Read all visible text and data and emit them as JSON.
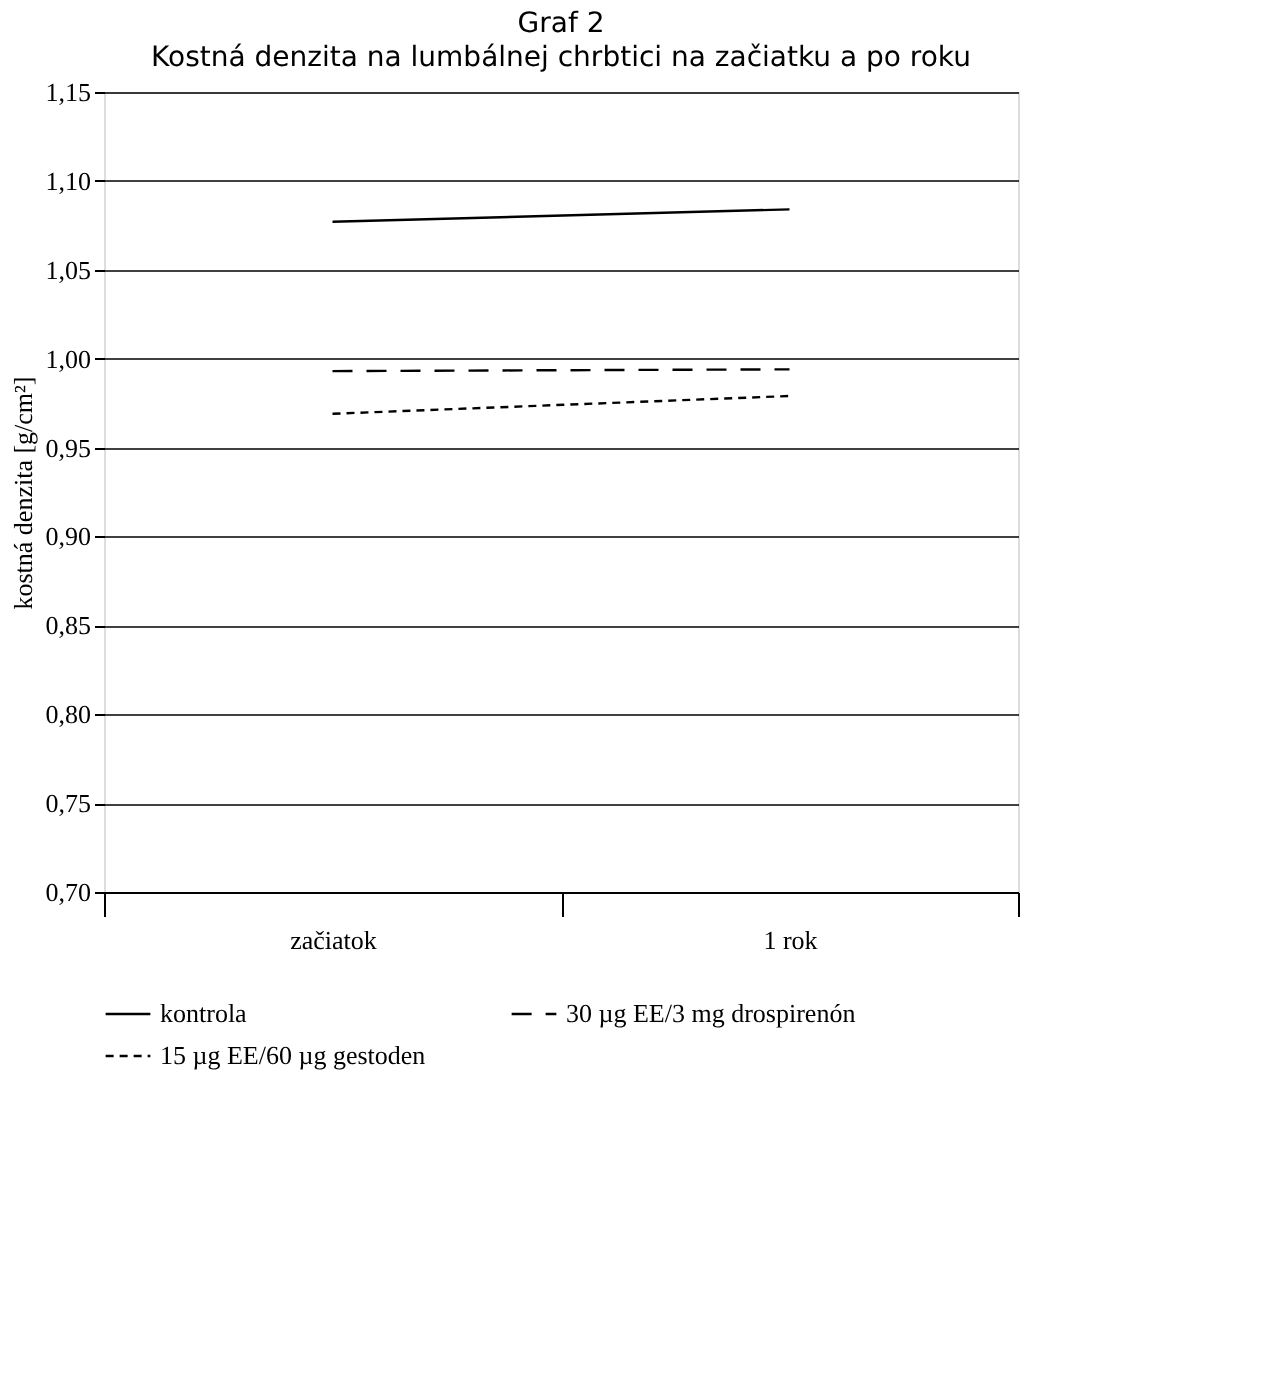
{
  "chart_data": {
    "type": "line",
    "title": "Graf 2",
    "subtitle": "Kostná denzita na lumbálnej chrbtici na začiatku a po roku",
    "ylabel": "kostná denzita [g/cm²]",
    "categories": [
      "začiatok",
      "1 rok"
    ],
    "series": [
      {
        "name": "kontrola",
        "color": "#000000",
        "line_style": "solid",
        "values": [
          1.077,
          1.084
        ]
      },
      {
        "name": "30 µg EE/3 mg drospirenón",
        "color": "#000000",
        "line_style": "dashed",
        "values": [
          0.993,
          0.994
        ]
      },
      {
        "name": "15 µg EE/60 µg gestoden",
        "color": "#000000",
        "line_style": "dotted",
        "values": [
          0.969,
          0.979
        ]
      }
    ],
    "ylim": [
      0.7,
      1.15
    ],
    "yticks": [
      {
        "value": 0.7,
        "label": "0,70"
      },
      {
        "value": 0.75,
        "label": "0,75"
      },
      {
        "value": 0.8,
        "label": "0,80"
      },
      {
        "value": 0.85,
        "label": "0,85"
      },
      {
        "value": 0.9,
        "label": "0,90"
      },
      {
        "value": 0.95,
        "label": "0,95"
      },
      {
        "value": 1.0,
        "label": "1,00"
      },
      {
        "value": 1.05,
        "label": "1,05"
      },
      {
        "value": 1.1,
        "label": "1,10"
      },
      {
        "value": 1.15,
        "label": "1,15"
      }
    ],
    "grid": "y",
    "legend": "bottom",
    "marker": "none"
  }
}
